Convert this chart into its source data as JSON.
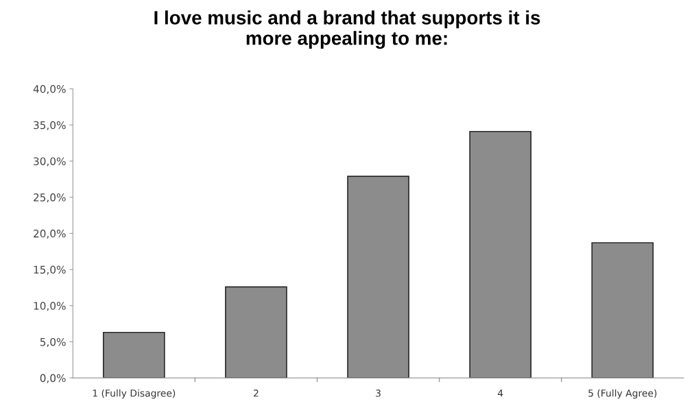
{
  "chart_data": {
    "type": "bar",
    "title": "I love music and a brand that supports it is\nmore appealing to me:",
    "categories": [
      "1 (Fully Disagree)",
      "2",
      "3",
      "4",
      "5 (Fully Agree)"
    ],
    "values": [
      6.3,
      12.6,
      27.9,
      34.1,
      18.7
    ],
    "color": "#8c8c8c",
    "ylim": [
      0,
      40
    ],
    "yticks": [
      {
        "value": 0,
        "label": "0,0%"
      },
      {
        "value": 5,
        "label": "5,0%"
      },
      {
        "value": 10,
        "label": "10,0%"
      },
      {
        "value": 15,
        "label": "15,0%"
      },
      {
        "value": 20,
        "label": "20,0%"
      },
      {
        "value": 25,
        "label": "25,0%"
      },
      {
        "value": 30,
        "label": "30,0%"
      },
      {
        "value": 35,
        "label": "35,0%"
      },
      {
        "value": 40,
        "label": "40,0%"
      }
    ],
    "grid": false
  }
}
